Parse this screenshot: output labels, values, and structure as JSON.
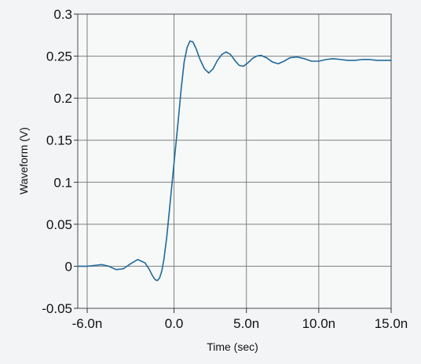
{
  "chart_data": {
    "type": "line",
    "title": "",
    "xlabel": "Time (sec)",
    "ylabel": "Waveform (V)",
    "xlim": [
      -6.65,
      15.0
    ],
    "ylim": [
      -0.05,
      0.3
    ],
    "x_ticks": [
      -6.0,
      0.0,
      5.0,
      10.0,
      15.0
    ],
    "x_tick_labels": [
      "-6.0n",
      "0.0",
      "5.0n",
      "10.0n",
      "15.0n"
    ],
    "y_ticks": [
      -0.05,
      0,
      0.05,
      0.1,
      0.15,
      0.2,
      0.25,
      0.3
    ],
    "y_tick_labels": [
      "-0.05",
      "0",
      "0.05",
      "0.1",
      "0.15",
      "0.2",
      "0.25",
      "0.3"
    ],
    "grid": true,
    "legend": "none",
    "colors": {
      "series": "#1f6a9a"
    },
    "series": [
      {
        "x": [
          -6.65,
          -6.0,
          -5.5,
          -5.0,
          -4.5,
          -4.0,
          -3.5,
          -3.0,
          -2.5,
          -2.0,
          -1.7,
          -1.5,
          -1.3,
          -1.15,
          -1.0,
          -0.85,
          -0.7,
          -0.5,
          -0.3,
          -0.1,
          0.0,
          0.1,
          0.3,
          0.5,
          0.7,
          0.9,
          1.1,
          1.3,
          1.5,
          1.8,
          2.1,
          2.4,
          2.7,
          3.0,
          3.3,
          3.6,
          3.9,
          4.2,
          4.5,
          4.8,
          5.1,
          5.4,
          5.7,
          6.0,
          6.4,
          6.8,
          7.2,
          7.6,
          8.0,
          8.5,
          9.0,
          9.5,
          10.0,
          10.5,
          11.0,
          11.5,
          12.0,
          12.5,
          13.0,
          13.5,
          14.0,
          14.5,
          15.0
        ],
        "y": [
          0.0,
          0.0,
          0.001,
          0.002,
          0.0,
          -0.004,
          -0.003,
          0.003,
          0.008,
          0.004,
          -0.004,
          -0.011,
          -0.016,
          -0.017,
          -0.014,
          -0.006,
          0.008,
          0.035,
          0.07,
          0.105,
          0.123,
          0.14,
          0.175,
          0.212,
          0.243,
          0.26,
          0.268,
          0.267,
          0.26,
          0.246,
          0.235,
          0.23,
          0.235,
          0.245,
          0.252,
          0.255,
          0.252,
          0.245,
          0.239,
          0.238,
          0.242,
          0.247,
          0.25,
          0.251,
          0.248,
          0.243,
          0.241,
          0.244,
          0.248,
          0.249,
          0.247,
          0.244,
          0.244,
          0.246,
          0.247,
          0.246,
          0.245,
          0.245,
          0.246,
          0.246,
          0.245,
          0.245,
          0.245
        ]
      }
    ]
  }
}
